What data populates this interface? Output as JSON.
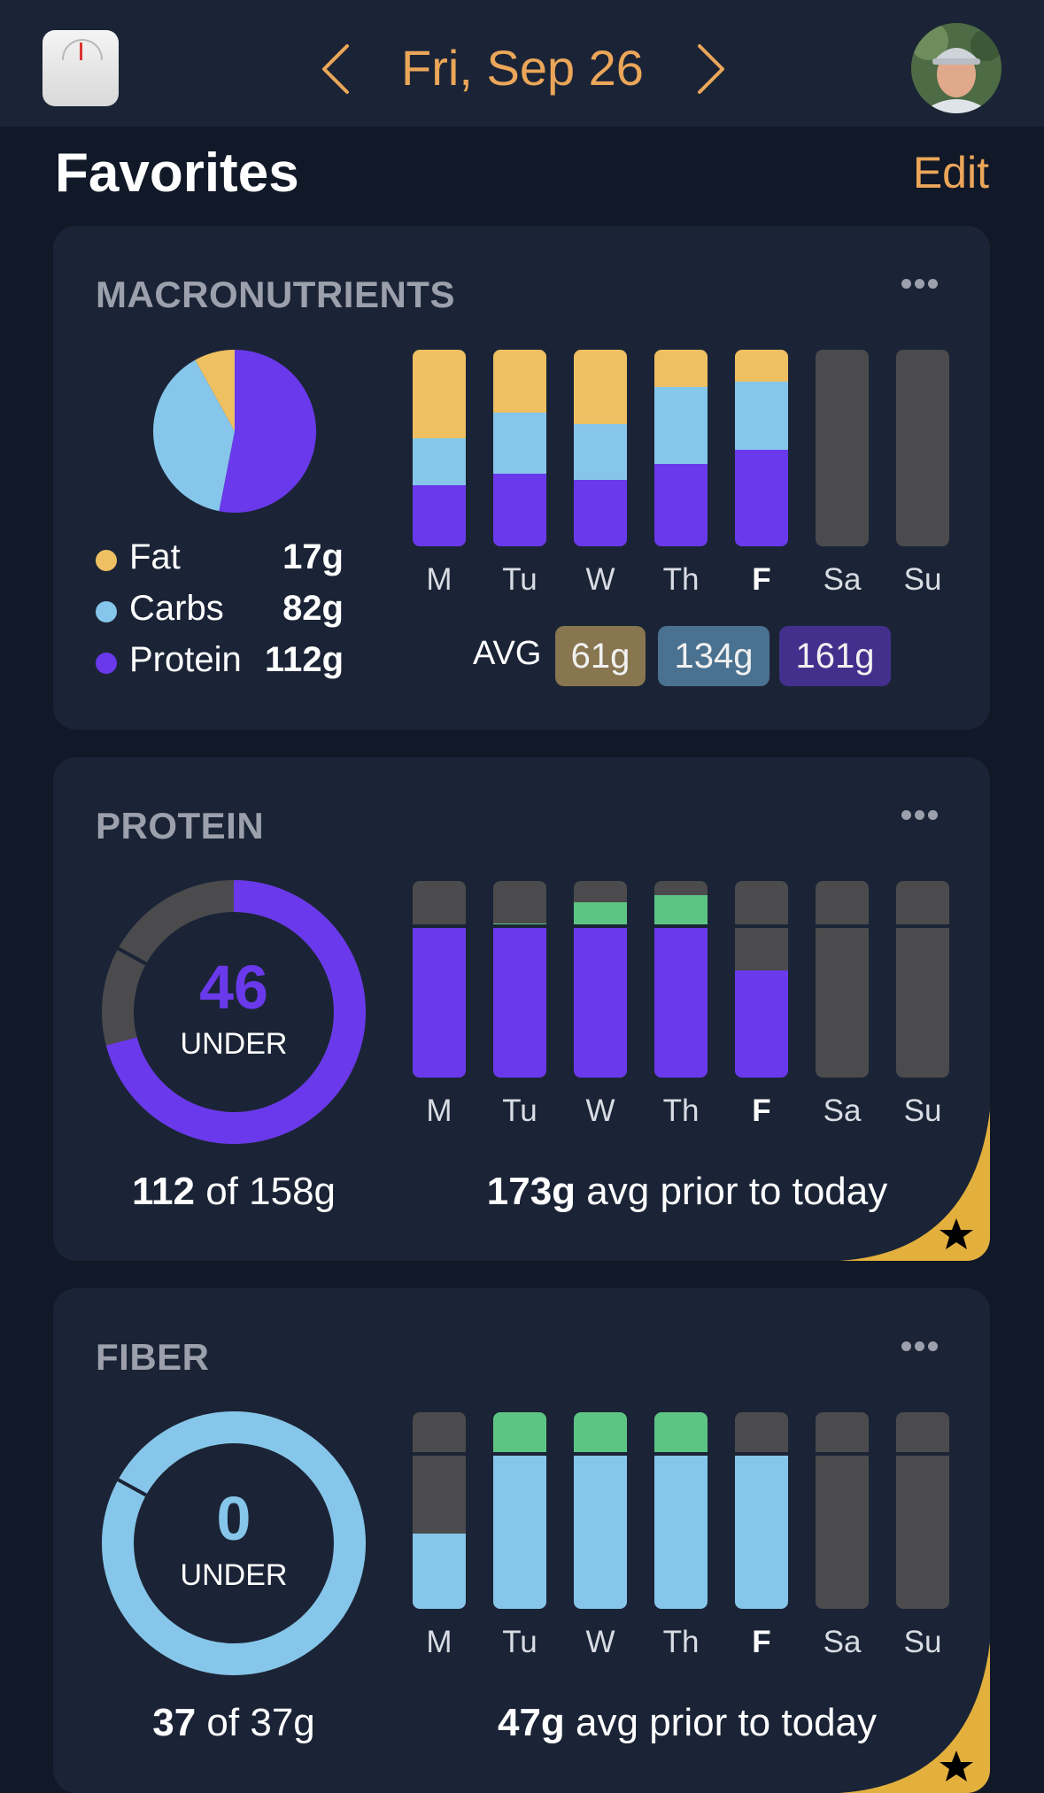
{
  "header": {
    "date": "Fri, Sep 26",
    "icons": {
      "app": "scale-app-icon",
      "prev": "chevron-left-icon",
      "next": "chevron-right-icon",
      "avatar": "user-avatar"
    }
  },
  "page": {
    "title": "Favorites",
    "edit_label": "Edit"
  },
  "colors": {
    "accent": "#eba659",
    "fat": "#eec062",
    "carbs": "#86c6ea",
    "protein": "#6a39ec",
    "goal_met": "#5dc584",
    "empty": "#4b4b4d",
    "star_badge": "#e3b03e"
  },
  "macronutrients": {
    "title": "MACRONUTRIENTS",
    "legend": [
      {
        "label": "Fat",
        "value": "17g",
        "color": "#eec062"
      },
      {
        "label": "Carbs",
        "value": "82g",
        "color": "#86c6ea"
      },
      {
        "label": "Protein",
        "value": "112g",
        "color": "#6a39ec"
      }
    ],
    "avg_label": "AVG",
    "averages": [
      {
        "value": "61g",
        "color": "#877650"
      },
      {
        "value": "134g",
        "color": "#4a7190"
      },
      {
        "value": "161g",
        "color": "#43308d"
      }
    ]
  },
  "protein": {
    "title": "PROTEIN",
    "remaining": "46",
    "status": "UNDER",
    "consumed": "112",
    "goal_text": "of 158g",
    "avg_value": "173g",
    "avg_text": "avg prior to today"
  },
  "fiber": {
    "title": "FIBER",
    "remaining": "0",
    "status": "UNDER",
    "consumed": "37",
    "goal_text": "of 37g",
    "avg_value": "47g",
    "avg_text": "avg prior to today"
  },
  "chart_data": [
    {
      "type": "pie",
      "labels": [
        "Fat",
        "Carbs",
        "Protein"
      ],
      "values": [
        17,
        82,
        112
      ]
    },
    {
      "type": "bar",
      "stacked": true,
      "categories": [
        "M",
        "Tu",
        "W",
        "Th",
        "F",
        "Sa",
        "Su"
      ],
      "today": "F",
      "series": [
        {
          "name": "Protein",
          "values": [
            31,
            37,
            34,
            42,
            49,
            0,
            0
          ]
        },
        {
          "name": "Carbs",
          "values": [
            24,
            31,
            28,
            39,
            35,
            0,
            0
          ]
        },
        {
          "name": "Fat",
          "values": [
            45,
            32,
            38,
            19,
            16,
            0,
            0
          ]
        }
      ],
      "unit": "percent of daily total"
    },
    {
      "type": "bar",
      "categories": [
        "M",
        "Tu",
        "W",
        "Th",
        "F",
        "Sa",
        "Su"
      ],
      "today": "F",
      "goal": 158,
      "values": [
        158,
        161,
        183,
        190,
        112,
        null,
        null
      ],
      "ylim": [
        0,
        205
      ]
    },
    {
      "type": "pie",
      "labels": [
        "consumed",
        "remaining"
      ],
      "values": [
        112,
        46
      ]
    },
    {
      "type": "bar",
      "categories": [
        "M",
        "Tu",
        "W",
        "Th",
        "F",
        "Sa",
        "Su"
      ],
      "today": "F",
      "goal": 37,
      "values": [
        18,
        47,
        47,
        47,
        37,
        null,
        null
      ],
      "ylim": [
        0,
        47
      ]
    },
    {
      "type": "pie",
      "labels": [
        "consumed",
        "remaining"
      ],
      "values": [
        37,
        0
      ]
    }
  ]
}
